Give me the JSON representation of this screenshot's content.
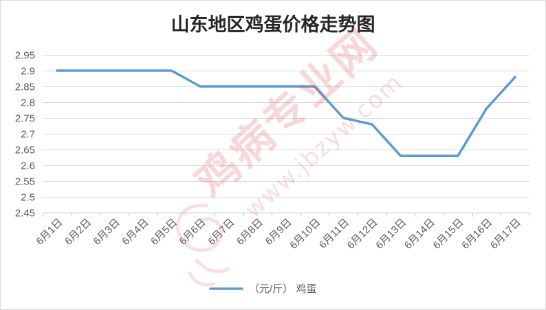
{
  "colors": {
    "series": "#5b9bd5",
    "grid": "#d9d9d9",
    "axis_line": "#bfbfbf",
    "axis_text": "#595959",
    "title": "#262626",
    "watermark": "#e05a5a",
    "border": "#d9d9d9"
  },
  "watermark": {
    "site_name": "鸡病专业网",
    "url": "www.jbzyw.com"
  },
  "chart_data": {
    "type": "line",
    "title": "山东地区鸡蛋价格走势图",
    "categories": [
      "6月1日",
      "6月2日",
      "6月3日",
      "6月4日",
      "6月5日",
      "6月6日",
      "6月7日",
      "6月8日",
      "6月9日",
      "6月10日",
      "6月11日",
      "6月12日",
      "6月13日",
      "6月14日",
      "6月15日",
      "6月16日",
      "6月17日"
    ],
    "series": [
      {
        "name": "（元/斤） 鸡蛋",
        "values": [
          2.9,
          2.9,
          2.9,
          2.9,
          2.9,
          2.85,
          2.85,
          2.85,
          2.85,
          2.85,
          2.75,
          2.73,
          2.63,
          2.63,
          2.63,
          2.78,
          2.88
        ]
      }
    ],
    "ylim": [
      2.45,
      2.95
    ],
    "yticks": [
      2.45,
      2.5,
      2.55,
      2.6,
      2.65,
      2.7,
      2.75,
      2.8,
      2.85,
      2.9,
      2.95
    ],
    "grid": "horizontal",
    "legend": "bottom"
  }
}
